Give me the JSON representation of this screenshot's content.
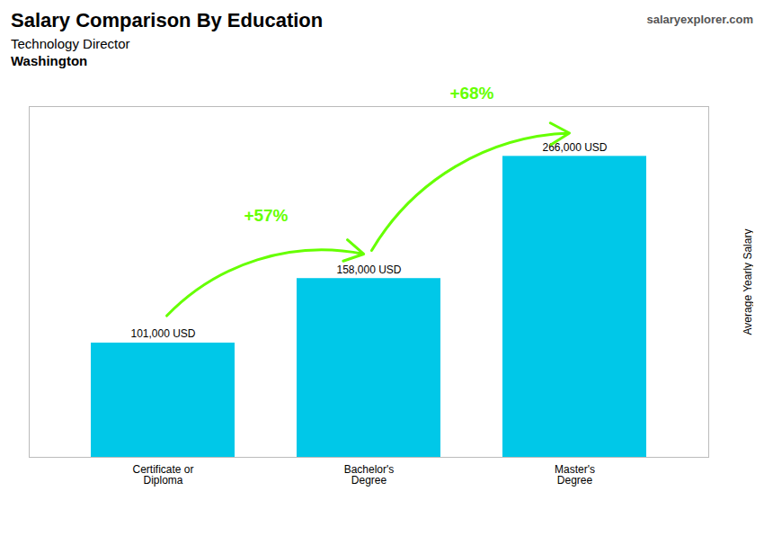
{
  "chart_data": {
    "type": "bar",
    "title": "Salary Comparison By Education",
    "subtitle": [
      "Technology Director",
      "Washington"
    ],
    "caption": "salaryexplorer.com",
    "ylabel": "Average Yearly Salary",
    "categories": [
      "Certificate or\nDiploma",
      "Bachelor's\nDegree",
      "Master's\nDegree"
    ],
    "values": [
      101000,
      158000,
      266000
    ],
    "value_labels": [
      "101,000 USD",
      "158,000 USD",
      "266,000 USD"
    ],
    "data_labels": true,
    "color": "#00c8e8",
    "ylim": [
      0,
      310000
    ],
    "grid": false,
    "tick_labels": "x",
    "annotations": [
      {
        "text": "+57%",
        "color": "#66ff00"
      },
      {
        "text": "+68%",
        "color": "#66ff00"
      }
    ]
  }
}
